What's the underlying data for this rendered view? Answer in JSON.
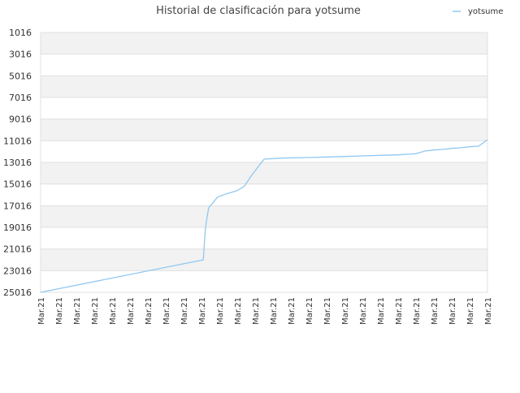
{
  "chart_data": {
    "type": "line",
    "title": "Historial de clasificación para yotsume",
    "xlabel": "",
    "ylabel": "",
    "y_reversed": true,
    "ylim": [
      1016,
      25016
    ],
    "y_ticks": [
      1016,
      3016,
      5016,
      7016,
      9016,
      11016,
      13016,
      15016,
      17016,
      19016,
      21016,
      23016,
      25016
    ],
    "x_tick_labels": [
      "Mar.21",
      "Mar.21",
      "Mar.21",
      "Mar.21",
      "Mar.21",
      "Mar.21",
      "Mar.21",
      "Mar.21",
      "Mar.21",
      "Mar.21",
      "Mar.21",
      "Mar.21",
      "Mar.21",
      "Mar.21",
      "Mar.21",
      "Mar.21",
      "Mar.21",
      "Mar.21",
      "Mar.21",
      "Mar.21",
      "Mar.21",
      "Mar.21",
      "Mar.21",
      "Mar.21",
      "Mar.21",
      "Mar.21"
    ],
    "grid": true,
    "legend_position": "top-right",
    "colors": {
      "line": "#90c8f0",
      "band": "#f2f2f2",
      "grid": "#e0e0e0",
      "text": "#333333"
    },
    "series": [
      {
        "name": "yotsume",
        "x": [
          0,
          9.1,
          9.2,
          9.25,
          9.4,
          9.9,
          10.4,
          11.0,
          11.4,
          11.8,
          12.5,
          13.5,
          15.0,
          16.0,
          17.0,
          18.0,
          19.0,
          20.0,
          21.0,
          21.5,
          22.0,
          22.5,
          23.0,
          23.5,
          24.0,
          24.5,
          25.0
        ],
        "values": [
          25016,
          22016,
          19516,
          18716,
          17216,
          16216,
          15916,
          15616,
          15216,
          14216,
          12716,
          12616,
          12566,
          12516,
          12466,
          12416,
          12366,
          12316,
          12216,
          11966,
          11866,
          11816,
          11716,
          11666,
          11566,
          11516,
          10916
        ]
      }
    ]
  }
}
